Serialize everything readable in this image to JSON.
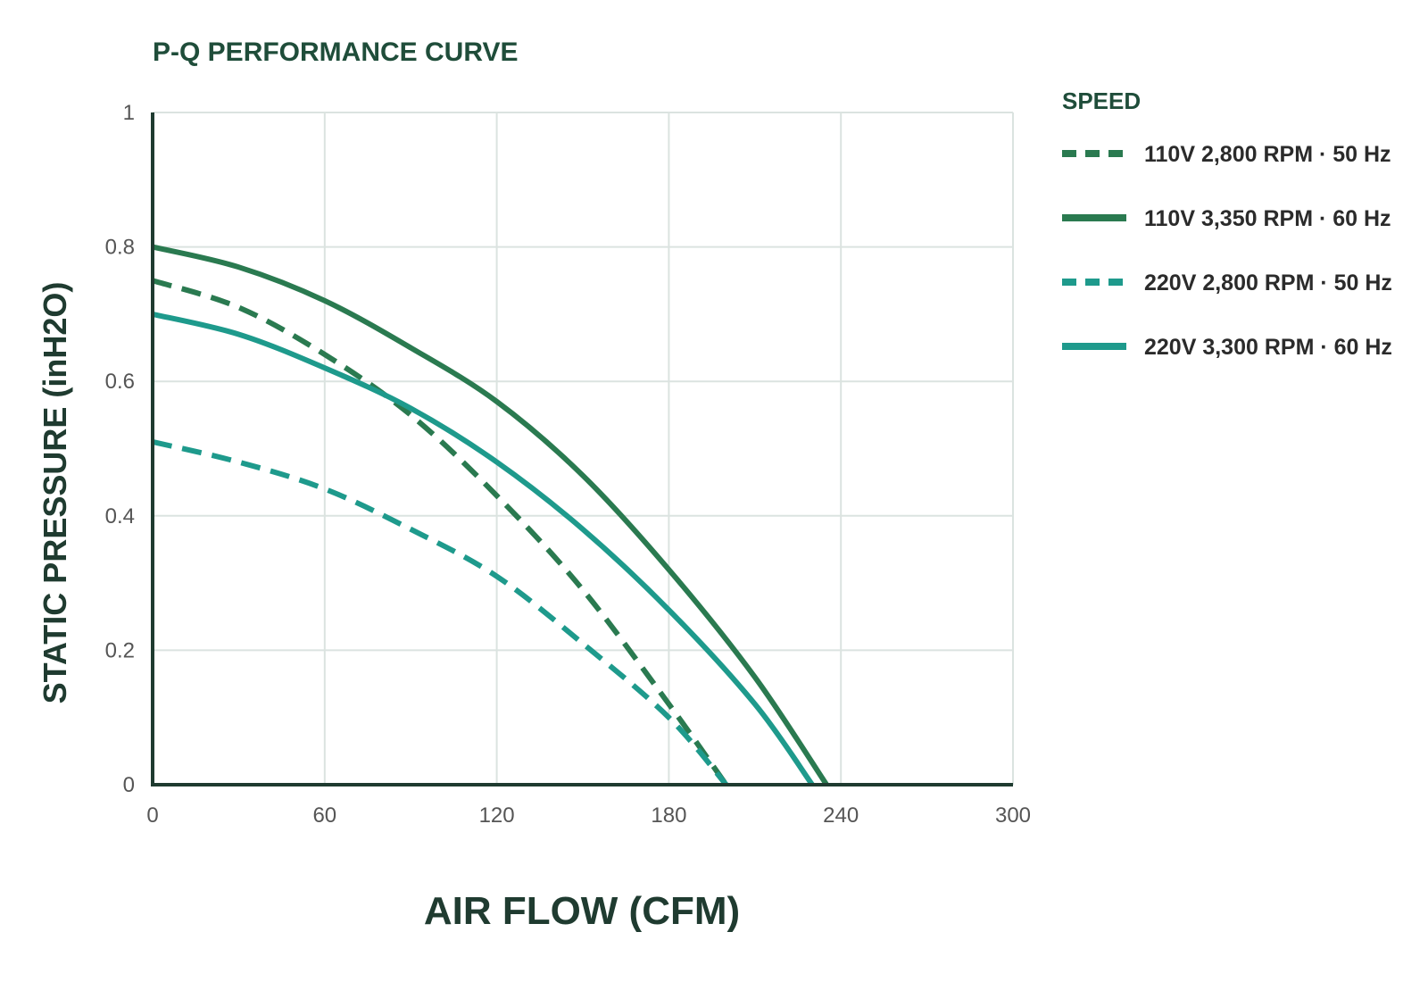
{
  "chart_data": {
    "type": "line",
    "title": "P-Q PERFORMANCE CURVE",
    "xlabel": "AIR FLOW (CFM)",
    "ylabel": "STATIC PRESSURE (inH2O)",
    "xlim": [
      0,
      300
    ],
    "ylim": [
      0,
      1
    ],
    "x_ticks": [
      0,
      60,
      120,
      180,
      240,
      300
    ],
    "y_ticks": [
      0,
      0.2,
      0.4,
      0.6,
      0.8,
      1
    ],
    "x_tick_labels": [
      "0",
      "60",
      "120",
      "180",
      "240",
      "300"
    ],
    "y_tick_labels": [
      "0",
      "0.2",
      "0.4",
      "0.6",
      "0.8",
      "1"
    ],
    "grid": true,
    "legend_title": "SPEED",
    "legend_placement": "right",
    "series": [
      {
        "name": "110V 2,800 RPM · 50 Hz",
        "color": "#2a7a50",
        "dash": "dashed",
        "x": [
          0,
          30,
          60,
          90,
          120,
          150,
          180,
          200
        ],
        "y": [
          0.75,
          0.71,
          0.64,
          0.55,
          0.43,
          0.29,
          0.12,
          0
        ]
      },
      {
        "name": "110V 3,350 RPM · 60 Hz",
        "color": "#2a7a50",
        "dash": "solid",
        "x": [
          0,
          30,
          60,
          90,
          120,
          150,
          180,
          210,
          235
        ],
        "y": [
          0.8,
          0.77,
          0.72,
          0.65,
          0.57,
          0.46,
          0.32,
          0.16,
          0
        ]
      },
      {
        "name": "220V 2,800 RPM · 50 Hz",
        "color": "#1e9a8c",
        "dash": "dashed",
        "x": [
          0,
          30,
          60,
          90,
          120,
          150,
          180,
          200
        ],
        "y": [
          0.51,
          0.48,
          0.44,
          0.38,
          0.31,
          0.21,
          0.1,
          0
        ]
      },
      {
        "name": "220V 3,300 RPM · 60 Hz",
        "color": "#1e9a8c",
        "dash": "solid",
        "x": [
          0,
          30,
          60,
          90,
          120,
          150,
          180,
          210,
          230
        ],
        "y": [
          0.7,
          0.67,
          0.62,
          0.56,
          0.48,
          0.38,
          0.26,
          0.12,
          0
        ]
      }
    ]
  }
}
